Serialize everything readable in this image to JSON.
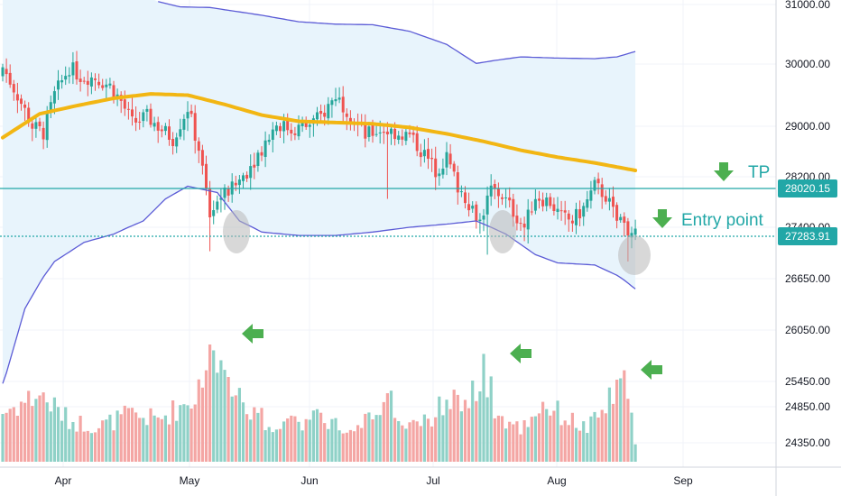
{
  "chart_data": {
    "type": "candlestick",
    "title": "",
    "xlabel": "",
    "ylabel": "",
    "ylim": [
      24150,
      31100
    ],
    "y_ticks": [
      "31000.00",
      "30000.00",
      "29000.00",
      "28200.00",
      "27400.00",
      "26650.00",
      "26050.00",
      "25450.00",
      "24850.00",
      "24350.00"
    ],
    "x_ticks": [
      "Apr",
      "May",
      "Jun",
      "Jul",
      "Aug",
      "Sep"
    ],
    "grid": true,
    "colors": {
      "up": "#26a69a",
      "down": "#ef5350",
      "volume_up": "#8fd1c7",
      "volume_down": "#f4a6a4",
      "ma": "#f2b613",
      "bands": "#5b5bd6",
      "band_fill": "#e8f4fc",
      "level_line": "#22a7a7",
      "arrow": "#4caf50",
      "circle": "#b8b8b8"
    },
    "levels": [
      {
        "name": "TP",
        "value": 28020.15,
        "label": "28020.15"
      },
      {
        "name": "Entry point",
        "value": 27283.91,
        "label": "27283.91"
      }
    ],
    "annotations": [
      "TP",
      "Entry point"
    ],
    "candle_anchors": [
      [
        0,
        29950
      ],
      [
        4,
        29500
      ],
      [
        8,
        29000
      ],
      [
        11,
        28900
      ],
      [
        14,
        29500
      ],
      [
        18,
        29950
      ],
      [
        21,
        29800
      ],
      [
        25,
        29780
      ],
      [
        29,
        29650
      ],
      [
        32,
        29400
      ],
      [
        35,
        29050
      ],
      [
        39,
        29150
      ],
      [
        43,
        28950
      ],
      [
        46,
        28800
      ],
      [
        50,
        29300
      ],
      [
        53,
        28650
      ],
      [
        56,
        27600
      ],
      [
        59,
        27900
      ],
      [
        62,
        28000
      ],
      [
        66,
        28300
      ],
      [
        70,
        28650
      ],
      [
        74,
        29050
      ],
      [
        78,
        28950
      ],
      [
        82,
        29000
      ],
      [
        86,
        29150
      ],
      [
        90,
        29500
      ],
      [
        94,
        29200
      ],
      [
        98,
        28850
      ],
      [
        102,
        28950
      ],
      [
        106,
        28900
      ],
      [
        110,
        28850
      ],
      [
        114,
        28550
      ],
      [
        117,
        28300
      ],
      [
        120,
        28500
      ],
      [
        123,
        28050
      ],
      [
        126,
        27800
      ],
      [
        129,
        27500
      ],
      [
        132,
        28000
      ],
      [
        135,
        27900
      ],
      [
        138,
        27650
      ],
      [
        141,
        27400
      ],
      [
        144,
        27900
      ],
      [
        148,
        27800
      ],
      [
        151,
        27550
      ],
      [
        154,
        27500
      ],
      [
        157,
        27700
      ],
      [
        160,
        28050
      ],
      [
        163,
        27900
      ],
      [
        166,
        27500
      ],
      [
        169,
        27350
      ],
      [
        171,
        27280
      ]
    ],
    "ma_points": [
      [
        0,
        28820
      ],
      [
        10,
        29200
      ],
      [
        20,
        29330
      ],
      [
        30,
        29450
      ],
      [
        40,
        29520
      ],
      [
        50,
        29500
      ],
      [
        60,
        29350
      ],
      [
        70,
        29180
      ],
      [
        80,
        29080
      ],
      [
        90,
        29060
      ],
      [
        100,
        29040
      ],
      [
        110,
        28980
      ],
      [
        120,
        28880
      ],
      [
        130,
        28760
      ],
      [
        140,
        28620
      ],
      [
        150,
        28510
      ],
      [
        160,
        28420
      ],
      [
        171,
        28300
      ]
    ],
    "upper_band_points": [
      [
        42,
        31050
      ],
      [
        48,
        30960
      ],
      [
        56,
        30950
      ],
      [
        70,
        30820
      ],
      [
        80,
        30710
      ],
      [
        90,
        30670
      ],
      [
        100,
        30660
      ],
      [
        110,
        30550
      ],
      [
        120,
        30330
      ],
      [
        128,
        30010
      ],
      [
        133,
        30060
      ],
      [
        140,
        30120
      ],
      [
        150,
        30100
      ],
      [
        160,
        30090
      ],
      [
        166,
        30120
      ],
      [
        171,
        30210
      ]
    ],
    "lower_band_points": [
      [
        0,
        25400
      ],
      [
        6,
        26300
      ],
      [
        14,
        26900
      ],
      [
        22,
        27180
      ],
      [
        30,
        27300
      ],
      [
        38,
        27500
      ],
      [
        44,
        27850
      ],
      [
        50,
        28050
      ],
      [
        58,
        27950
      ],
      [
        64,
        27500
      ],
      [
        70,
        27330
      ],
      [
        80,
        27280
      ],
      [
        90,
        27280
      ],
      [
        100,
        27330
      ],
      [
        110,
        27400
      ],
      [
        120,
        27450
      ],
      [
        128,
        27500
      ],
      [
        136,
        27300
      ],
      [
        144,
        27000
      ],
      [
        150,
        26880
      ],
      [
        160,
        26850
      ],
      [
        166,
        26700
      ],
      [
        171,
        26530
      ]
    ],
    "volume_anchors": [
      [
        0,
        0.42
      ],
      [
        10,
        0.58
      ],
      [
        18,
        0.35
      ],
      [
        26,
        0.3
      ],
      [
        34,
        0.4
      ],
      [
        42,
        0.36
      ],
      [
        52,
        0.55
      ],
      [
        56,
        1.0
      ],
      [
        60,
        0.85
      ],
      [
        66,
        0.45
      ],
      [
        74,
        0.3
      ],
      [
        84,
        0.38
      ],
      [
        92,
        0.32
      ],
      [
        98,
        0.36
      ],
      [
        104,
        0.52
      ],
      [
        110,
        0.32
      ],
      [
        116,
        0.4
      ],
      [
        122,
        0.58
      ],
      [
        126,
        0.48
      ],
      [
        130,
        0.8
      ],
      [
        134,
        0.38
      ],
      [
        140,
        0.28
      ],
      [
        146,
        0.5
      ],
      [
        152,
        0.38
      ],
      [
        158,
        0.28
      ],
      [
        162,
        0.42
      ],
      [
        166,
        0.62
      ],
      [
        168,
        0.75
      ],
      [
        170,
        0.55
      ],
      [
        171,
        0.12
      ]
    ],
    "volume_highlights": [
      [
        56,
        1.0
      ],
      [
        57,
        0.95
      ],
      [
        55,
        0.78
      ],
      [
        130,
        0.92
      ],
      [
        131,
        0.55
      ],
      [
        166,
        0.7
      ],
      [
        168,
        0.78
      ]
    ]
  }
}
